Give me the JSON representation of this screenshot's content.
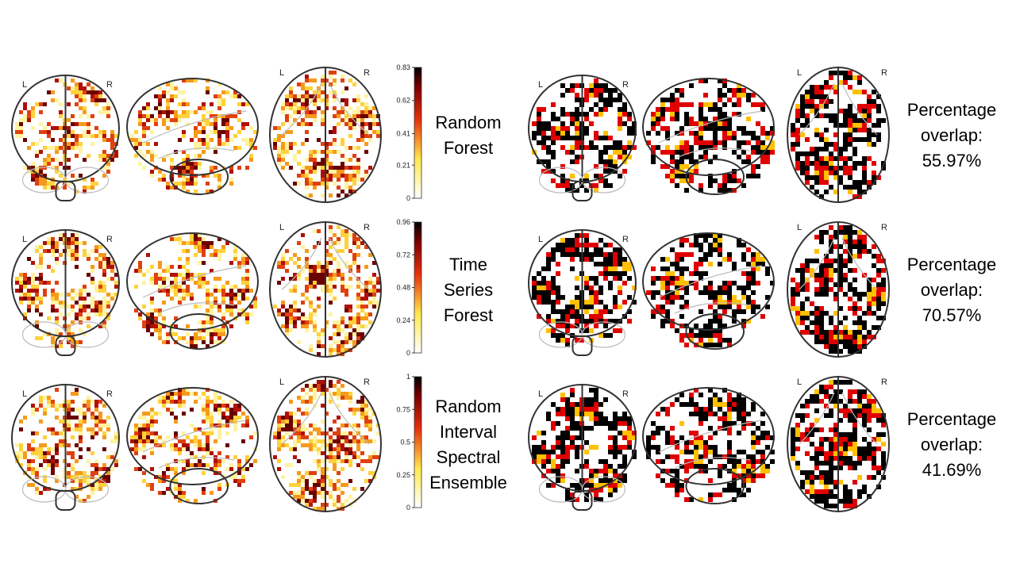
{
  "orientation": {
    "left": "L",
    "right": "R"
  },
  "rows": [
    {
      "method_lines": [
        "Random",
        "Forest"
      ],
      "colorbar_ticks": [
        0,
        0.21,
        0.41,
        0.62,
        0.83
      ],
      "overlap_lines": [
        "Percentage",
        "overlap:",
        "55.97%"
      ]
    },
    {
      "method_lines": [
        "Time",
        "Series",
        "Forest"
      ],
      "colorbar_ticks": [
        0,
        0.24,
        0.48,
        0.72,
        0.96
      ],
      "overlap_lines": [
        "Percentage",
        "overlap:",
        "70.57%"
      ]
    },
    {
      "method_lines": [
        "Random",
        "Interval",
        "Spectral",
        "Ensemble"
      ],
      "colorbar_ticks": [
        0,
        0.25,
        0.5,
        0.75,
        1
      ],
      "overlap_lines": [
        "Percentage",
        "overlap:",
        "41.69%"
      ]
    }
  ]
}
